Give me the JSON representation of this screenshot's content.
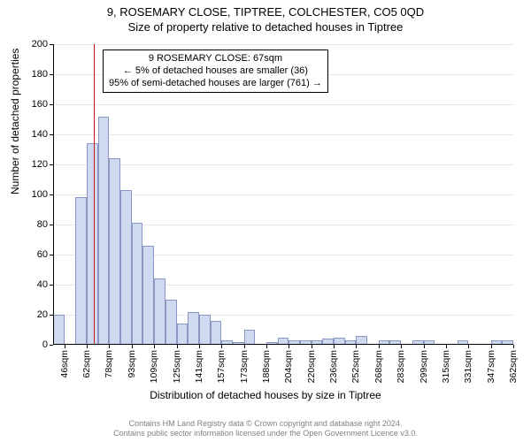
{
  "title": "9, ROSEMARY CLOSE, TIPTREE, COLCHESTER, CO5 0QD",
  "subtitle": "Size of property relative to detached houses in Tiptree",
  "ylabel": "Number of detached properties",
  "xlabel": "Distribution of detached houses by size in Tiptree",
  "chart": {
    "type": "histogram",
    "background_color": "#ffffff",
    "grid_color": "#e8e8e8",
    "axis_color": "#000000",
    "bar_fill": "#cfd9ef",
    "bar_border": "#8a97c5",
    "marker_color": "#c41818",
    "marker_x_value": 67,
    "ylim": [
      0,
      200
    ],
    "ytick_step": 20,
    "x_start": 38,
    "x_step_label": 16,
    "bar_width_value": 8,
    "x_tick_labels": [
      "46sqm",
      "62sqm",
      "78sqm",
      "93sqm",
      "109sqm",
      "125sqm",
      "141sqm",
      "157sqm",
      "173sqm",
      "188sqm",
      "204sqm",
      "220sqm",
      "236sqm",
      "252sqm",
      "268sqm",
      "283sqm",
      "299sqm",
      "315sqm",
      "331sqm",
      "347sqm",
      "362sqm"
    ],
    "bars": [
      20,
      0,
      98,
      134,
      152,
      124,
      103,
      81,
      66,
      44,
      30,
      14,
      22,
      20,
      16,
      3,
      2,
      10,
      0,
      2,
      5,
      3,
      3,
      3,
      4,
      5,
      3,
      6,
      0,
      3,
      3,
      0,
      3,
      3,
      0,
      0,
      3,
      0,
      0,
      3,
      3
    ]
  },
  "annotation": {
    "line1": "9 ROSEMARY CLOSE: 67sqm",
    "line2": "← 5% of detached houses are smaller (36)",
    "line3": "95% of semi-detached houses are larger (761) →"
  },
  "footer": {
    "line1": "Contains HM Land Registry data © Crown copyright and database right 2024.",
    "line2": "Contains public sector information licensed under the Open Government Licence v3.0."
  },
  "fonts": {
    "title_size": 13,
    "label_size": 12,
    "tick_size": 11,
    "annotation_size": 11,
    "footer_size": 9
  }
}
